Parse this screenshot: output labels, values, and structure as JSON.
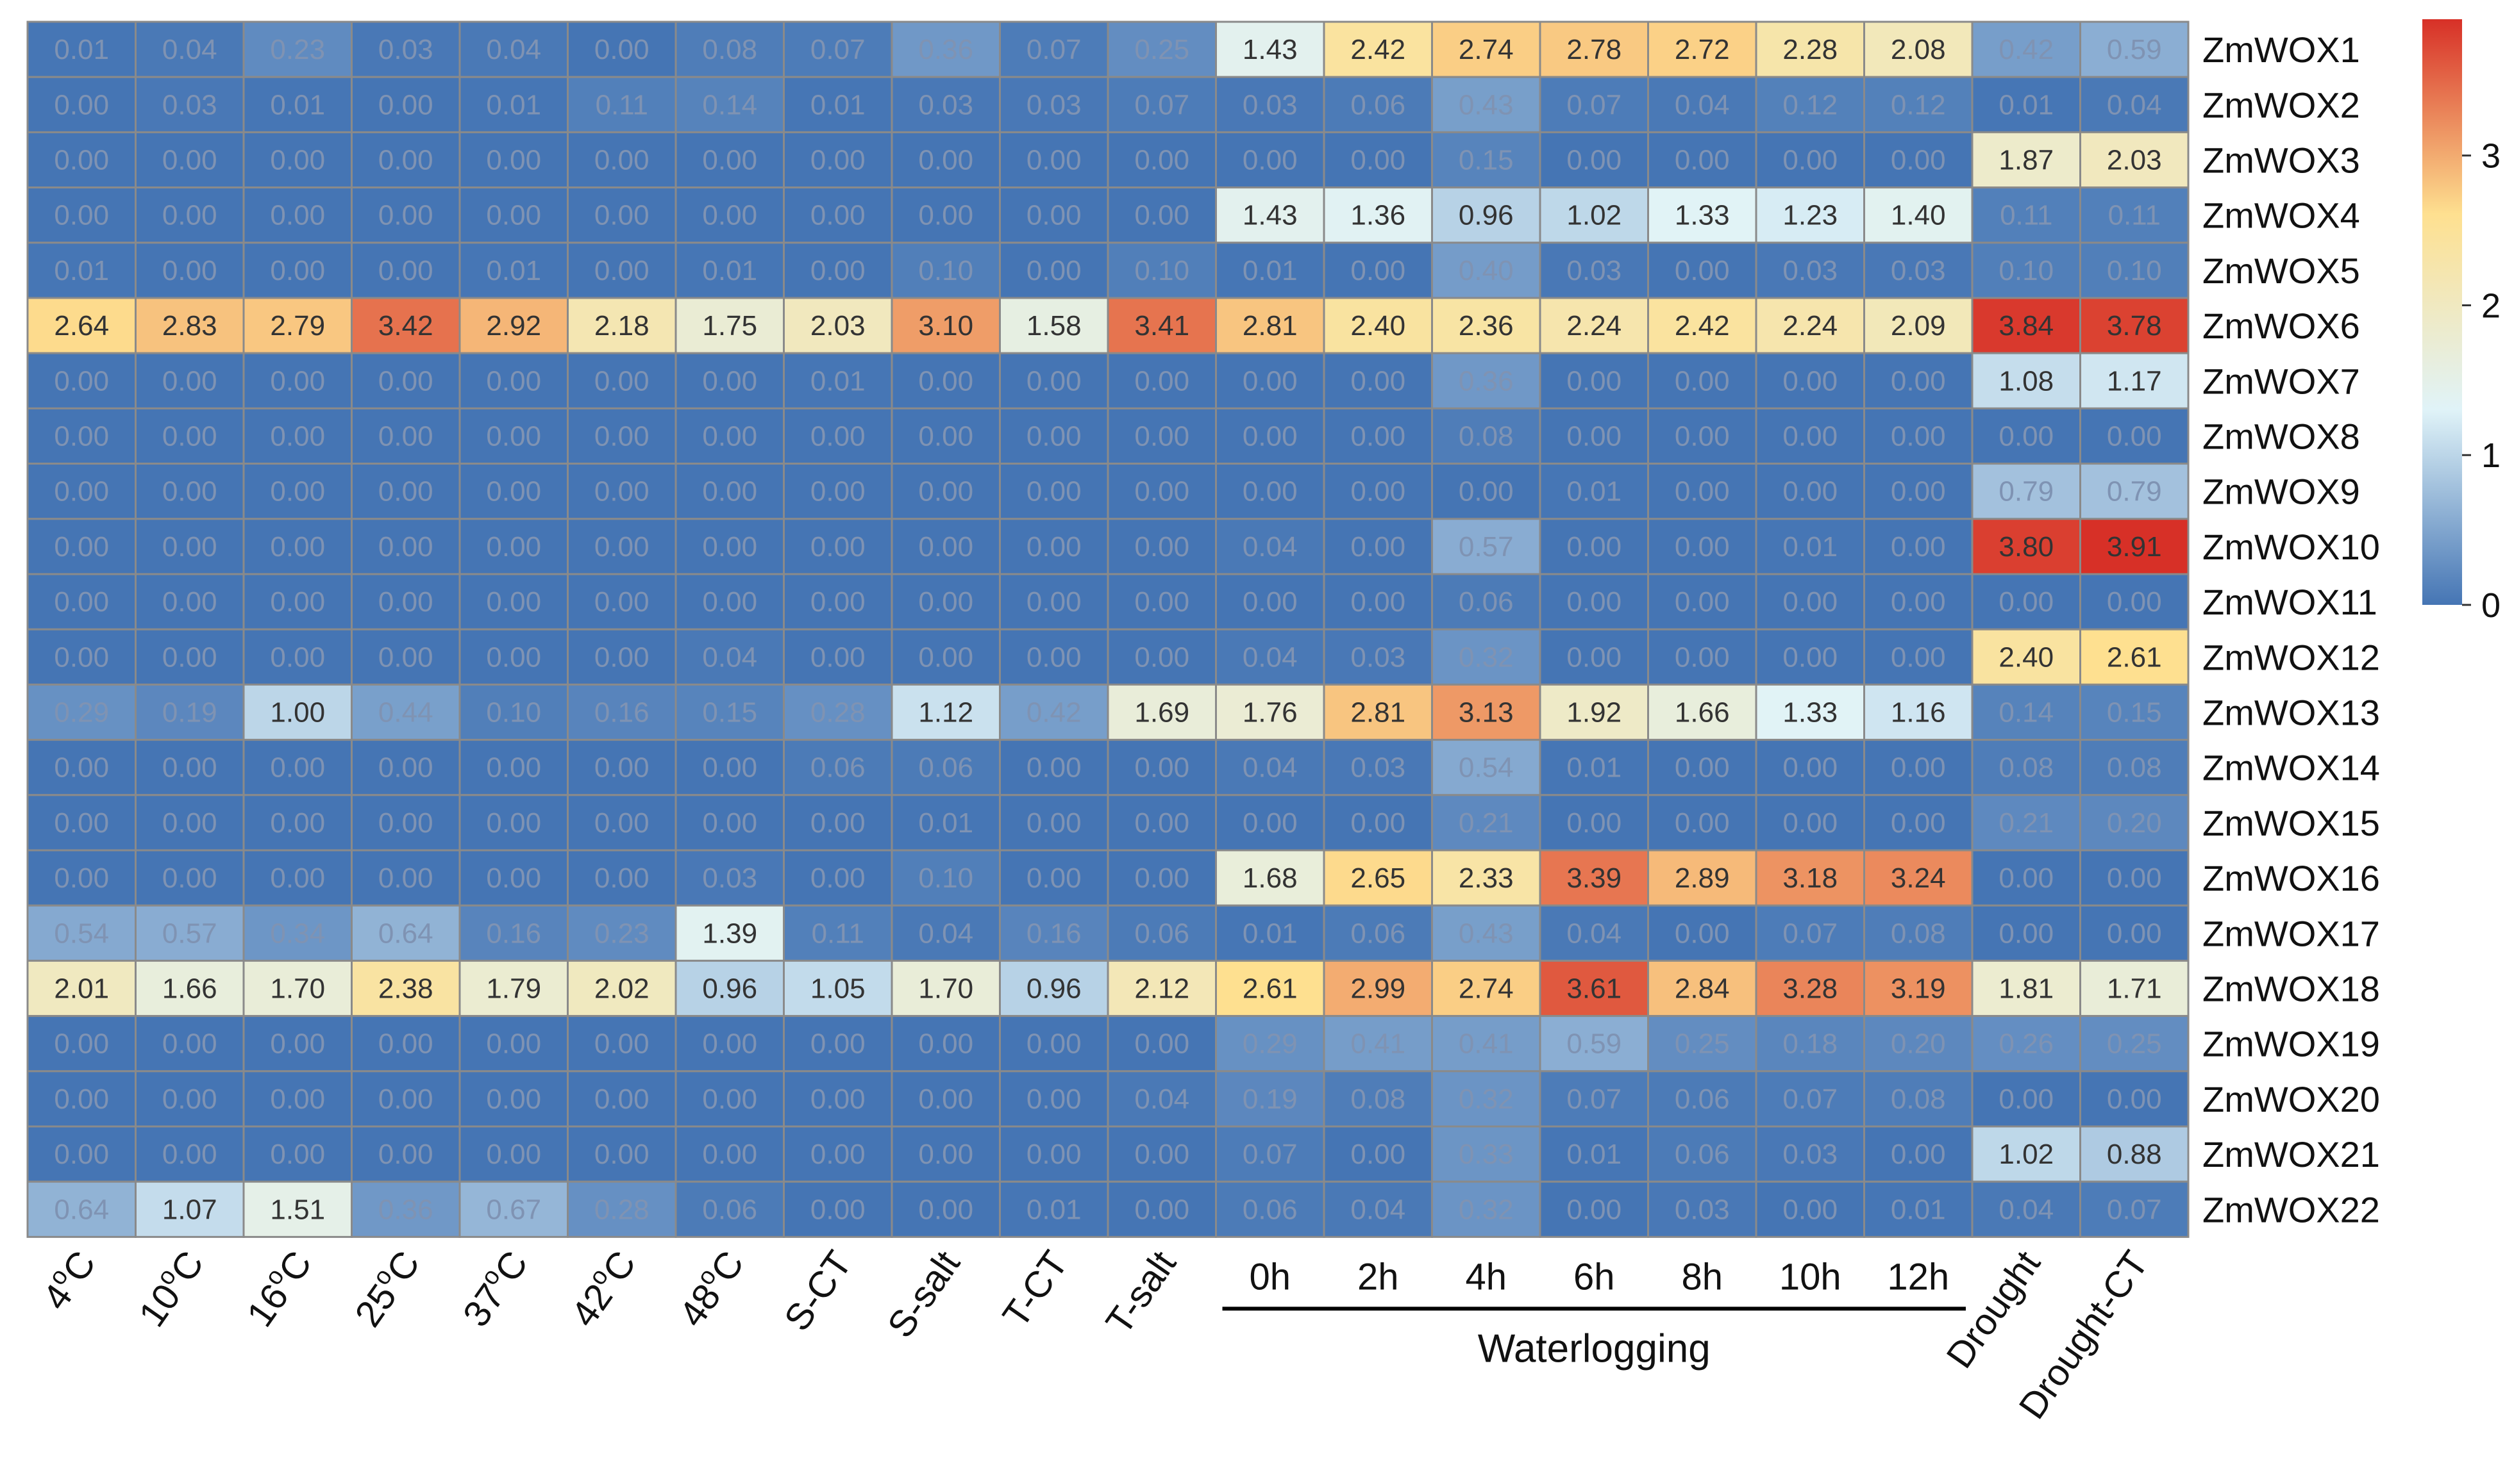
{
  "chart_data": {
    "type": "heatmap",
    "title": "",
    "row_labels": [
      "ZmWOX1",
      "ZmWOX2",
      "ZmWOX3",
      "ZmWOX4",
      "ZmWOX5",
      "ZmWOX6",
      "ZmWOX7",
      "ZmWOX8",
      "ZmWOX9",
      "ZmWOX10",
      "ZmWOX11",
      "ZmWOX12",
      "ZmWOX13",
      "ZmWOX14",
      "ZmWOX15",
      "ZmWOX16",
      "ZmWOX17",
      "ZmWOX18",
      "ZmWOX19",
      "ZmWOX20",
      "ZmWOX21",
      "ZmWOX22"
    ],
    "column_labels": [
      "4oC",
      "10oC",
      "16oC",
      "25oC",
      "37oC",
      "42oC",
      "48oC",
      "S-CT",
      "S-salt",
      "T-CT",
      "T-salt",
      "0h",
      "2h",
      "4h",
      "6h",
      "8h",
      "10h",
      "12h",
      "Drought",
      "Drought-CT"
    ],
    "column_group": {
      "label": "Waterlogging",
      "from_column": 11,
      "to_column": 17
    },
    "colorbar": {
      "ticks": [
        0,
        1,
        2,
        3
      ],
      "range": [
        0,
        3.91
      ],
      "colors": [
        "#4575b4",
        "#e0f3f8",
        "#fee090",
        "#d73027"
      ]
    },
    "values": [
      [
        "0.01",
        "0.04",
        "0.23",
        "0.03",
        "0.04",
        "0.00",
        "0.08",
        "0.07",
        "0.36",
        "0.07",
        "0.25",
        "1.43",
        "2.42",
        "2.74",
        "2.78",
        "2.72",
        "2.28",
        "2.08",
        "0.42",
        "0.59"
      ],
      [
        "0.00",
        "0.03",
        "0.01",
        "0.00",
        "0.01",
        "0.11",
        "0.14",
        "0.01",
        "0.03",
        "0.03",
        "0.07",
        "0.03",
        "0.06",
        "0.43",
        "0.07",
        "0.04",
        "0.12",
        "0.12",
        "0.01",
        "0.04"
      ],
      [
        "0.00",
        "0.00",
        "0.00",
        "0.00",
        "0.00",
        "0.00",
        "0.00",
        "0.00",
        "0.00",
        "0.00",
        "0.00",
        "0.00",
        "0.00",
        "0.15",
        "0.00",
        "0.00",
        "0.00",
        "0.00",
        "1.87",
        "2.03"
      ],
      [
        "0.00",
        "0.00",
        "0.00",
        "0.00",
        "0.00",
        "0.00",
        "0.00",
        "0.00",
        "0.00",
        "0.00",
        "0.00",
        "1.43",
        "1.36",
        "0.96",
        "1.02",
        "1.33",
        "1.23",
        "1.40",
        "0.11",
        "0.11"
      ],
      [
        "0.01",
        "0.00",
        "0.00",
        "0.00",
        "0.01",
        "0.00",
        "0.01",
        "0.00",
        "0.10",
        "0.00",
        "0.10",
        "0.01",
        "0.00",
        "0.40",
        "0.03",
        "0.00",
        "0.03",
        "0.03",
        "0.10",
        "0.10"
      ],
      [
        "2.64",
        "2.83",
        "2.79",
        "3.42",
        "2.92",
        "2.18",
        "1.75",
        "2.03",
        "3.10",
        "1.58",
        "3.41",
        "2.81",
        "2.40",
        "2.36",
        "2.24",
        "2.42",
        "2.24",
        "2.09",
        "3.84",
        "3.78"
      ],
      [
        "0.00",
        "0.00",
        "0.00",
        "0.00",
        "0.00",
        "0.00",
        "0.00",
        "0.01",
        "0.00",
        "0.00",
        "0.00",
        "0.00",
        "0.00",
        "0.36",
        "0.00",
        "0.00",
        "0.00",
        "0.00",
        "1.08",
        "1.17"
      ],
      [
        "0.00",
        "0.00",
        "0.00",
        "0.00",
        "0.00",
        "0.00",
        "0.00",
        "0.00",
        "0.00",
        "0.00",
        "0.00",
        "0.00",
        "0.00",
        "0.08",
        "0.00",
        "0.00",
        "0.00",
        "0.00",
        "0.00",
        "0.00"
      ],
      [
        "0.00",
        "0.00",
        "0.00",
        "0.00",
        "0.00",
        "0.00",
        "0.00",
        "0.00",
        "0.00",
        "0.00",
        "0.00",
        "0.00",
        "0.00",
        "0.00",
        "0.01",
        "0.00",
        "0.00",
        "0.00",
        "0.79",
        "0.79"
      ],
      [
        "0.00",
        "0.00",
        "0.00",
        "0.00",
        "0.00",
        "0.00",
        "0.00",
        "0.00",
        "0.00",
        "0.00",
        "0.00",
        "0.04",
        "0.00",
        "0.57",
        "0.00",
        "0.00",
        "0.01",
        "0.00",
        "3.80",
        "3.91"
      ],
      [
        "0.00",
        "0.00",
        "0.00",
        "0.00",
        "0.00",
        "0.00",
        "0.00",
        "0.00",
        "0.00",
        "0.00",
        "0.00",
        "0.00",
        "0.00",
        "0.06",
        "0.00",
        "0.00",
        "0.00",
        "0.00",
        "0.00",
        "0.00"
      ],
      [
        "0.00",
        "0.00",
        "0.00",
        "0.00",
        "0.00",
        "0.00",
        "0.04",
        "0.00",
        "0.00",
        "0.00",
        "0.00",
        "0.04",
        "0.03",
        "0.32",
        "0.00",
        "0.00",
        "0.00",
        "0.00",
        "2.40",
        "2.61"
      ],
      [
        "0.29",
        "0.19",
        "1.00",
        "0.44",
        "0.10",
        "0.16",
        "0.15",
        "0.28",
        "1.12",
        "0.42",
        "1.69",
        "1.76",
        "2.81",
        "3.13",
        "1.92",
        "1.66",
        "1.33",
        "1.16",
        "0.14",
        "0.15"
      ],
      [
        "0.00",
        "0.00",
        "0.00",
        "0.00",
        "0.00",
        "0.00",
        "0.00",
        "0.06",
        "0.06",
        "0.00",
        "0.00",
        "0.04",
        "0.03",
        "0.54",
        "0.01",
        "0.00",
        "0.00",
        "0.00",
        "0.08",
        "0.08"
      ],
      [
        "0.00",
        "0.00",
        "0.00",
        "0.00",
        "0.00",
        "0.00",
        "0.00",
        "0.00",
        "0.01",
        "0.00",
        "0.00",
        "0.00",
        "0.00",
        "0.21",
        "0.00",
        "0.00",
        "0.00",
        "0.00",
        "0.21",
        "0.20"
      ],
      [
        "0.00",
        "0.00",
        "0.00",
        "0.00",
        "0.00",
        "0.00",
        "0.03",
        "0.00",
        "0.10",
        "0.00",
        "0.00",
        "1.68",
        "2.65",
        "2.33",
        "3.39",
        "2.89",
        "3.18",
        "3.24",
        "0.00",
        "0.00"
      ],
      [
        "0.54",
        "0.57",
        "0.34",
        "0.64",
        "0.16",
        "0.23",
        "1.39",
        "0.11",
        "0.04",
        "0.16",
        "0.06",
        "0.01",
        "0.06",
        "0.43",
        "0.04",
        "0.00",
        "0.07",
        "0.08",
        "0.00",
        "0.00"
      ],
      [
        "2.01",
        "1.66",
        "1.70",
        "2.38",
        "1.79",
        "2.02",
        "0.96",
        "1.05",
        "1.70",
        "0.96",
        "2.12",
        "2.61",
        "2.99",
        "2.74",
        "3.61",
        "2.84",
        "3.28",
        "3.19",
        "1.81",
        "1.71"
      ],
      [
        "0.00",
        "0.00",
        "0.00",
        "0.00",
        "0.00",
        "0.00",
        "0.00",
        "0.00",
        "0.00",
        "0.00",
        "0.00",
        "0.29",
        "0.41",
        "0.41",
        "0.59",
        "0.25",
        "0.18",
        "0.20",
        "0.26",
        "0.25"
      ],
      [
        "0.00",
        "0.00",
        "0.00",
        "0.00",
        "0.00",
        "0.00",
        "0.00",
        "0.00",
        "0.00",
        "0.00",
        "0.04",
        "0.19",
        "0.08",
        "0.32",
        "0.07",
        "0.06",
        "0.07",
        "0.08",
        "0.00",
        "0.00"
      ],
      [
        "0.00",
        "0.00",
        "0.00",
        "0.00",
        "0.00",
        "0.00",
        "0.00",
        "0.00",
        "0.00",
        "0.00",
        "0.00",
        "0.07",
        "0.00",
        "0.33",
        "0.01",
        "0.06",
        "0.03",
        "0.00",
        "1.02",
        "0.88"
      ],
      [
        "0.64",
        "1.07",
        "1.51",
        "0.36",
        "0.67",
        "0.28",
        "0.06",
        "0.00",
        "0.00",
        "0.01",
        "0.00",
        "0.06",
        "0.04",
        "0.32",
        "0.00",
        "0.03",
        "0.00",
        "0.01",
        "0.04",
        "0.07"
      ]
    ]
  }
}
